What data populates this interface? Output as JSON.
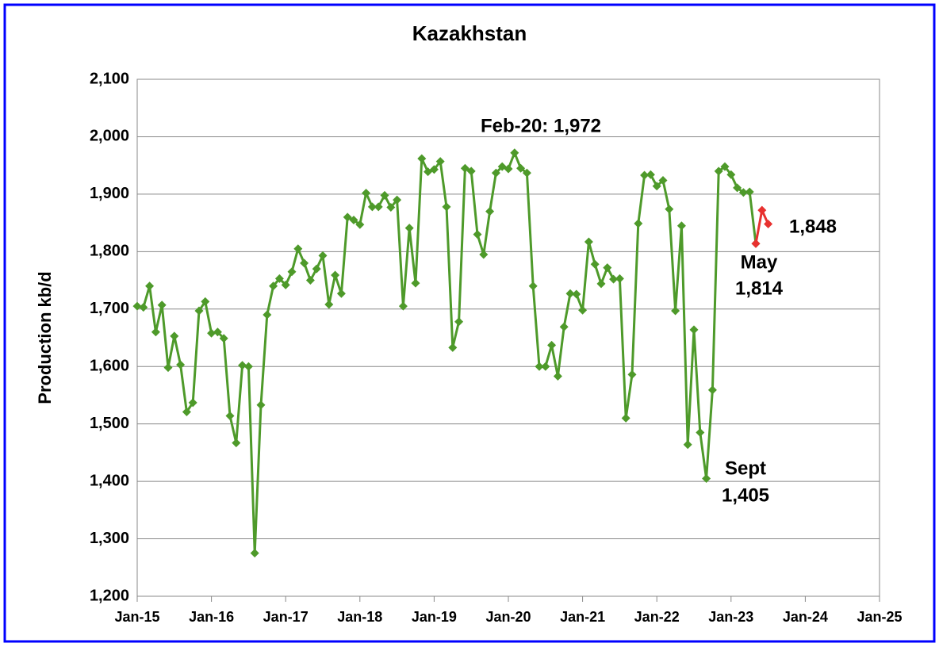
{
  "chart_data": {
    "type": "line",
    "title": "Kazakhstan",
    "y_label": "Production kb/d",
    "xlim": [
      "2015-01",
      "2025-01"
    ],
    "xticks": [
      {
        "value": "2015-01",
        "label": "Jan-15"
      },
      {
        "value": "2016-01",
        "label": "Jan-16"
      },
      {
        "value": "2017-01",
        "label": "Jan-17"
      },
      {
        "value": "2018-01",
        "label": "Jan-18"
      },
      {
        "value": "2019-01",
        "label": "Jan-19"
      },
      {
        "value": "2020-01",
        "label": "Jan-20"
      },
      {
        "value": "2021-01",
        "label": "Jan-21"
      },
      {
        "value": "2022-01",
        "label": "Jan-22"
      },
      {
        "value": "2023-01",
        "label": "Jan-23"
      },
      {
        "value": "2024-01",
        "label": "Jan-24"
      },
      {
        "value": "2025-01",
        "label": "Jan-25"
      }
    ],
    "ylim": [
      1200,
      2100
    ],
    "yticks": [
      {
        "value": 1200,
        "label": "1,200"
      },
      {
        "value": 1300,
        "label": "1,300"
      },
      {
        "value": 1400,
        "label": "1,400"
      },
      {
        "value": 1500,
        "label": "1,500"
      },
      {
        "value": 1600,
        "label": "1,600"
      },
      {
        "value": 1700,
        "label": "1,700"
      },
      {
        "value": 1800,
        "label": "1,800"
      },
      {
        "value": 1900,
        "label": "1,900"
      },
      {
        "value": 2000,
        "label": "2,000"
      },
      {
        "value": 2100,
        "label": "2,100"
      }
    ],
    "grid": true,
    "series": [
      {
        "color": "#4e9a2a",
        "x": [
          "2015-01",
          "2015-02",
          "2015-03",
          "2015-04",
          "2015-05",
          "2015-06",
          "2015-07",
          "2015-08",
          "2015-09",
          "2015-10",
          "2015-11",
          "2015-12",
          "2016-01",
          "2016-02",
          "2016-03",
          "2016-04",
          "2016-05",
          "2016-06",
          "2016-07",
          "2016-08",
          "2016-09",
          "2016-10",
          "2016-11",
          "2016-12",
          "2017-01",
          "2017-02",
          "2017-03",
          "2017-04",
          "2017-05",
          "2017-06",
          "2017-07",
          "2017-08",
          "2017-09",
          "2017-10",
          "2017-11",
          "2017-12",
          "2018-01",
          "2018-02",
          "2018-03",
          "2018-04",
          "2018-05",
          "2018-06",
          "2018-07",
          "2018-08",
          "2018-09",
          "2018-10",
          "2018-11",
          "2018-12",
          "2019-01",
          "2019-02",
          "2019-03",
          "2019-04",
          "2019-05",
          "2019-06",
          "2019-07",
          "2019-08",
          "2019-09",
          "2019-10",
          "2019-11",
          "2019-12",
          "2020-01",
          "2020-02",
          "2020-03",
          "2020-04",
          "2020-05",
          "2020-06",
          "2020-07",
          "2020-08",
          "2020-09",
          "2020-10",
          "2020-11",
          "2020-12",
          "2021-01",
          "2021-02",
          "2021-03",
          "2021-04",
          "2021-05",
          "2021-06",
          "2021-07",
          "2021-08",
          "2021-09",
          "2021-10",
          "2021-11",
          "2021-12",
          "2022-01",
          "2022-02",
          "2022-03",
          "2022-04",
          "2022-05",
          "2022-06",
          "2022-07",
          "2022-08",
          "2022-09",
          "2022-10",
          "2022-11",
          "2022-12",
          "2023-01",
          "2023-02",
          "2023-03",
          "2023-04",
          "2023-05"
        ],
        "values": [
          1705,
          1703,
          1740,
          1660,
          1707,
          1598,
          1653,
          1603,
          1521,
          1537,
          1697,
          1713,
          1658,
          1660,
          1649,
          1514,
          1467,
          1602,
          1600,
          1275,
          1533,
          1690,
          1740,
          1753,
          1742,
          1765,
          1805,
          1780,
          1750,
          1770,
          1793,
          1708,
          1759,
          1727,
          1860,
          1855,
          1847,
          1902,
          1878,
          1878,
          1898,
          1877,
          1890,
          1705,
          1841,
          1745,
          1962,
          1939,
          1943,
          1957,
          1878,
          1633,
          1678,
          1945,
          1940,
          1830,
          1795,
          1870,
          1937,
          1948,
          1944,
          1972,
          1945,
          1937,
          1740,
          1600,
          1600,
          1637,
          1583,
          1669,
          1727,
          1726,
          1698,
          1817,
          1778,
          1744,
          1772,
          1752,
          1753,
          1510,
          1586,
          1849,
          1933,
          1934,
          1914,
          1924,
          1874,
          1697,
          1845,
          1464,
          1664,
          1485,
          1405,
          1559,
          1940,
          1948,
          1934,
          1911,
          1903,
          1904,
          1814
        ]
      },
      {
        "color": "#e8312f",
        "x": [
          "2023-05",
          "2023-06",
          "2023-07"
        ],
        "values": [
          1814,
          1872,
          1848
        ]
      }
    ],
    "annotations": [
      {
        "text": "Feb-20: 1,972"
      },
      {
        "text": "1,848"
      },
      {
        "text": "May"
      },
      {
        "text": "1,814"
      },
      {
        "text": "Sept"
      },
      {
        "text": "1,405"
      }
    ]
  }
}
